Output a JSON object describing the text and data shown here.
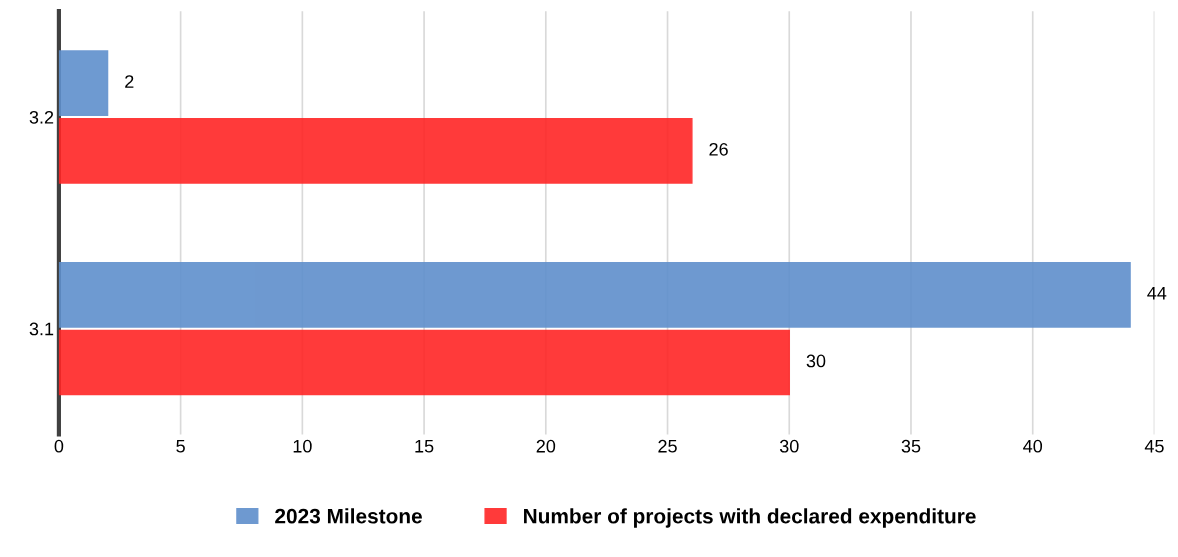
{
  "chart_data": {
    "type": "bar",
    "orientation": "horizontal",
    "categories": [
      "3.2",
      "3.1"
    ],
    "series": [
      {
        "name": "2023 Milestone",
        "color": "#5f8fcc",
        "values": [
          2,
          44
        ]
      },
      {
        "name": "Number of projects with declared expenditure",
        "color": "#ff2525",
        "values": [
          26,
          30
        ]
      }
    ],
    "xlim": [
      0,
      45
    ],
    "xticks": [
      0,
      5,
      10,
      15,
      20,
      25,
      30,
      35,
      40,
      45
    ],
    "grid": "x",
    "legend": "bottom",
    "data_labels": true
  }
}
